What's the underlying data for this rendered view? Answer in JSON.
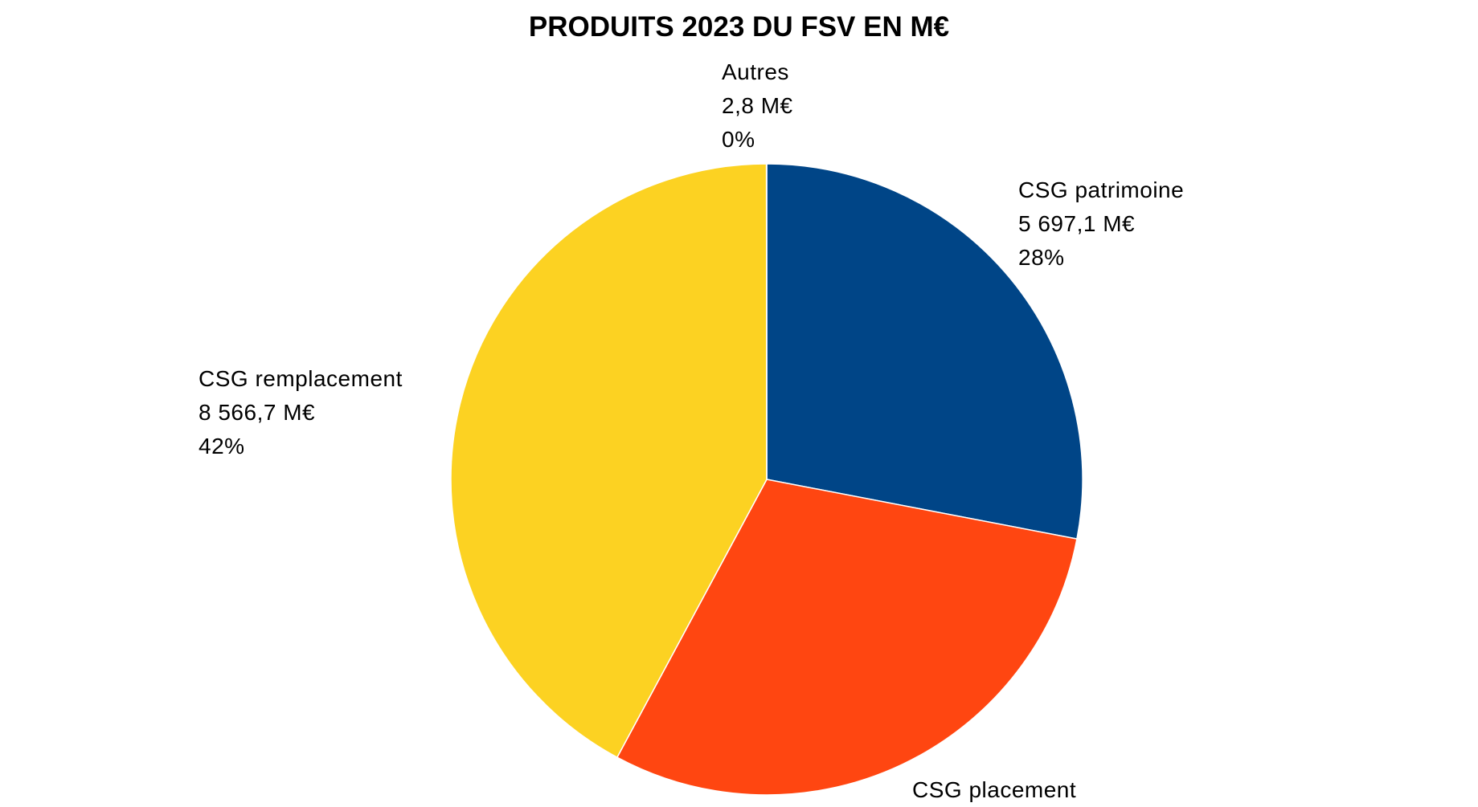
{
  "chart_data": {
    "type": "pie",
    "title": "PRODUITS 2023 DU FSV EN M€",
    "slices": [
      {
        "key": "patrimoine",
        "label": "CSG patrimoine",
        "value": 5697.1,
        "value_label": "5 697,1 M€",
        "percent_label": "28%",
        "color": "#004587"
      },
      {
        "key": "placement",
        "label": "CSG placement",
        "value": 6065.0,
        "value_label": "",
        "percent_label": "",
        "color": "#FF4611"
      },
      {
        "key": "remplacement",
        "label": "CSG remplacement",
        "value": 8566.7,
        "value_label": "8 566,7 M€",
        "percent_label": "42%",
        "color": "#FCD222"
      },
      {
        "key": "autres",
        "label": "Autres",
        "value": 2.8,
        "value_label": "2,8 M€",
        "percent_label": "0%",
        "color": "#3A9A1F"
      }
    ],
    "start": "top",
    "direction": "clockwise",
    "legend": "none"
  }
}
